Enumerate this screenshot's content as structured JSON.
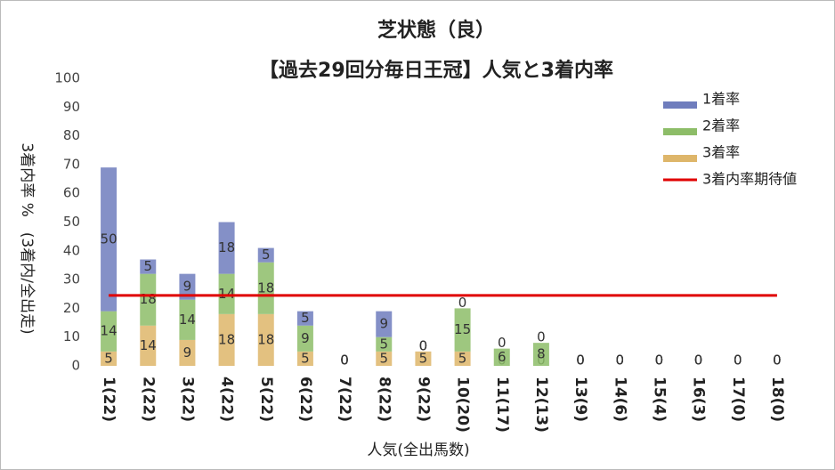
{
  "chart_data": {
    "type": "stacked_bar",
    "title": "芝状態（良）",
    "subtitle": "【過去29回分毎日王冠】人気と3着内率",
    "x_label": "人気(全出馬数)",
    "y_label": "3着内率 %　(3着内/全出走)",
    "categories": [
      "1(22)",
      "2(22)",
      "3(22)",
      "4(22)",
      "5(22)",
      "6(22)",
      "7(22)",
      "8(22)",
      "9(22)",
      "10(20)",
      "11(17)",
      "12(13)",
      "13(9)",
      "14(6)",
      "15(4)",
      "16(3)",
      "17(0)",
      "18(0)"
    ],
    "series": [
      {
        "name": "1着率",
        "color": "#6f7dbd",
        "values": [
          50,
          5,
          9,
          18,
          5,
          5,
          0,
          9,
          0,
          0,
          0,
          0,
          0,
          0,
          0,
          0,
          0,
          0
        ]
      },
      {
        "name": "2着率",
        "color": "#8dbd68",
        "values": [
          14,
          18,
          14,
          14,
          18,
          9,
          0,
          5,
          0,
          15,
          6,
          8,
          0,
          0,
          0,
          0,
          0,
          0
        ]
      },
      {
        "name": "3着率",
        "color": "#deb66a",
        "values": [
          5,
          14,
          9,
          18,
          18,
          5,
          0,
          5,
          5,
          5,
          0,
          0,
          0,
          0,
          0,
          0,
          0,
          0
        ]
      }
    ],
    "line_series": {
      "name": "3着内率期待値",
      "color": "#e00000",
      "values": [
        24.5,
        24.5,
        24.5,
        24.5,
        24.5,
        24.5,
        24.5,
        24.5,
        24.5,
        24.5,
        24.5,
        24.5,
        24.5,
        24.5,
        24.5,
        24.5,
        24.5,
        24.5
      ]
    },
    "ylim": [
      0,
      100
    ],
    "yticks": [
      0,
      10,
      20,
      30,
      40,
      50,
      60,
      70,
      80,
      90,
      100
    ],
    "grid": false
  }
}
